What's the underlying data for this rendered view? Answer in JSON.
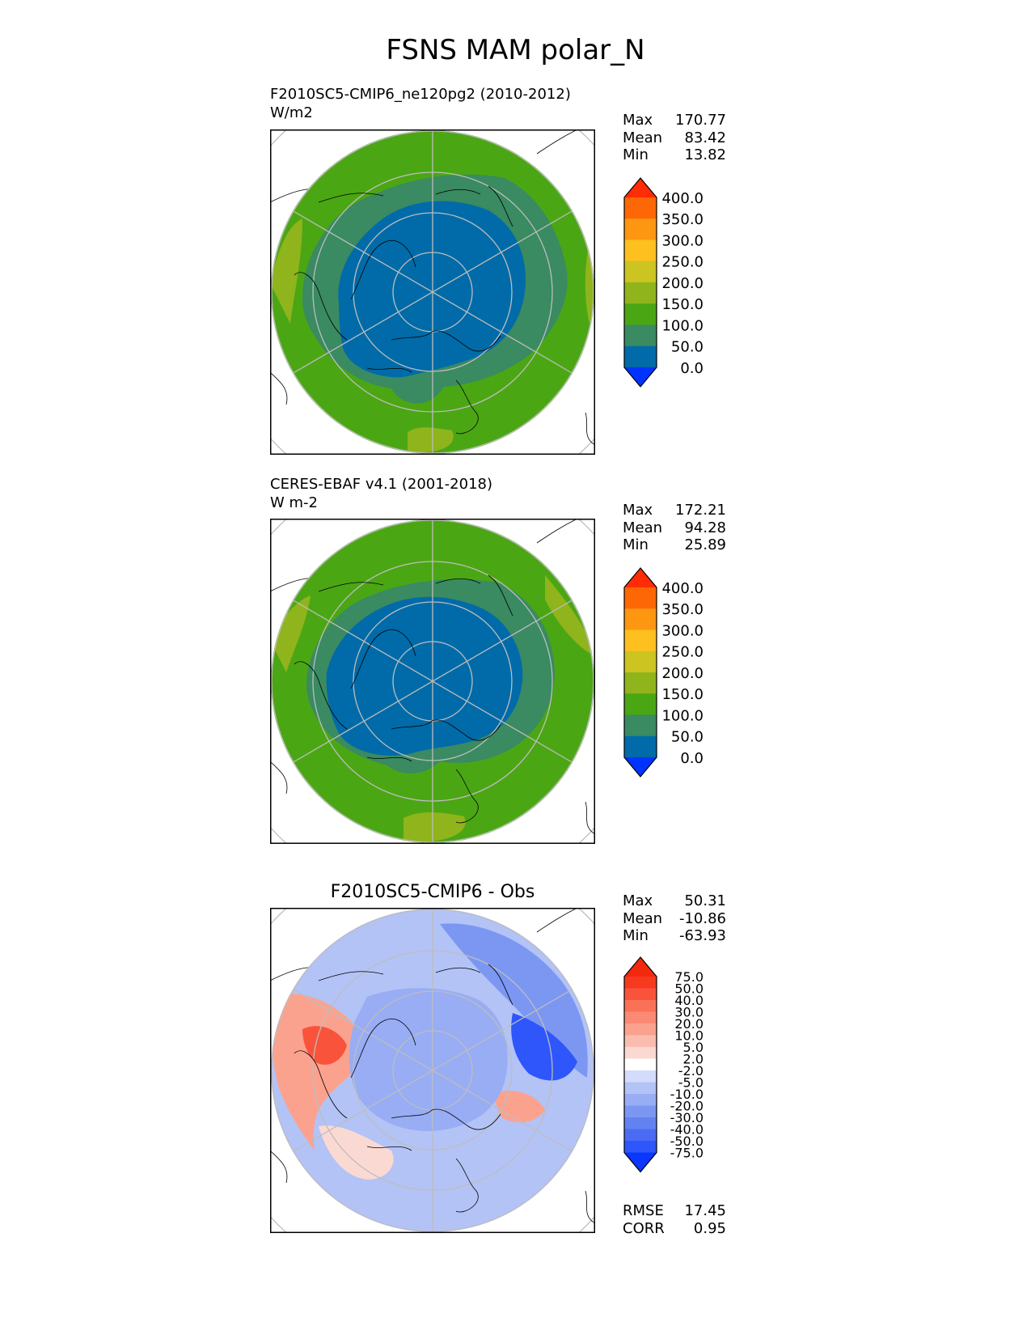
{
  "figure_title": "FSNS MAM polar_N",
  "panels": [
    {
      "title_line1": "F2010SC5-CMIP6_ne120pg2 (2010-2012)",
      "title_line2": "W/m2",
      "stats": [
        {
          "label": "Max",
          "value": "170.77"
        },
        {
          "label": "Mean",
          "value": "83.42"
        },
        {
          "label": "Min",
          "value": "13.82"
        }
      ]
    },
    {
      "title_line1": "CERES-EBAF v4.1 (2001-2018)",
      "title_line2": "W m-2",
      "stats": [
        {
          "label": "Max",
          "value": "172.21"
        },
        {
          "label": "Mean",
          "value": "94.28"
        },
        {
          "label": "Min",
          "value": "25.89"
        }
      ]
    },
    {
      "title": "F2010SC5-CMIP6 - Obs",
      "stats": [
        {
          "label": "Max",
          "value": "50.31"
        },
        {
          "label": "Mean",
          "value": "-10.86"
        },
        {
          "label": "Min",
          "value": "-63.93"
        }
      ],
      "metrics": [
        {
          "label": "RMSE",
          "value": "17.45"
        },
        {
          "label": "CORR",
          "value": "0.95"
        }
      ]
    }
  ],
  "chart_data": [
    {
      "type": "heatmap",
      "projection": "north polar stereographic",
      "title": "F2010SC5-CMIP6_ne120pg2 (2010-2012)",
      "units": "W/m2",
      "stats": {
        "max": 170.77,
        "mean": 83.42,
        "min": 13.82
      },
      "colorbar": {
        "levels": [
          0,
          50,
          100,
          150,
          200,
          250,
          300,
          350,
          400
        ],
        "tick_labels": [
          "400.0",
          "350.0",
          "300.0",
          "250.0",
          "200.0",
          "150.0",
          "100.0",
          "50.0",
          "0.0"
        ],
        "colors": [
          "#0033ff",
          "#006ba8",
          "#3a8a62",
          "#4ba614",
          "#8fb41c",
          "#cbc421",
          "#fdc01e",
          "#fd9610",
          "#fd6705",
          "#ff2c06"
        ],
        "extend": "both"
      }
    },
    {
      "type": "heatmap",
      "projection": "north polar stereographic",
      "title": "CERES-EBAF v4.1 (2001-2018)",
      "units": "W m-2",
      "stats": {
        "max": 172.21,
        "mean": 94.28,
        "min": 25.89
      },
      "colorbar": {
        "levels": [
          0,
          50,
          100,
          150,
          200,
          250,
          300,
          350,
          400
        ],
        "tick_labels": [
          "400.0",
          "350.0",
          "300.0",
          "250.0",
          "200.0",
          "150.0",
          "100.0",
          "50.0",
          "0.0"
        ],
        "colors": [
          "#0033ff",
          "#006ba8",
          "#3a8a62",
          "#4ba614",
          "#8fb41c",
          "#cbc421",
          "#fdc01e",
          "#fd9610",
          "#fd6705",
          "#ff2c06"
        ],
        "extend": "both"
      }
    },
    {
      "type": "heatmap",
      "projection": "north polar stereographic",
      "title": "F2010SC5-CMIP6 - Obs",
      "stats": {
        "max": 50.31,
        "mean": -10.86,
        "min": -63.93,
        "rmse": 17.45,
        "corr": 0.95
      },
      "colorbar": {
        "levels": [
          -75,
          -50,
          -40,
          -30,
          -20,
          -10,
          -5,
          -2,
          2,
          5,
          10,
          20,
          30,
          40,
          50,
          75
        ],
        "tick_labels": [
          "75.0",
          "50.0",
          "40.0",
          "30.0",
          "20.0",
          "10.0",
          "5.0",
          "2.0",
          "-2.0",
          "-5.0",
          "-10.0",
          "-20.0",
          "-30.0",
          "-40.0",
          "-50.0",
          "-75.0"
        ],
        "colors": [
          "#0a36ff",
          "#2e56fb",
          "#4a6cf5",
          "#6282f1",
          "#7c97f2",
          "#98adf4",
          "#b3c3f6",
          "#d3dcfa",
          "#ffffff",
          "#fbd9d3",
          "#fbbcb0",
          "#fba28f",
          "#fb8a74",
          "#fb7158",
          "#f9533c",
          "#f6391f",
          "#f3290e"
        ],
        "extend": "both"
      }
    }
  ]
}
